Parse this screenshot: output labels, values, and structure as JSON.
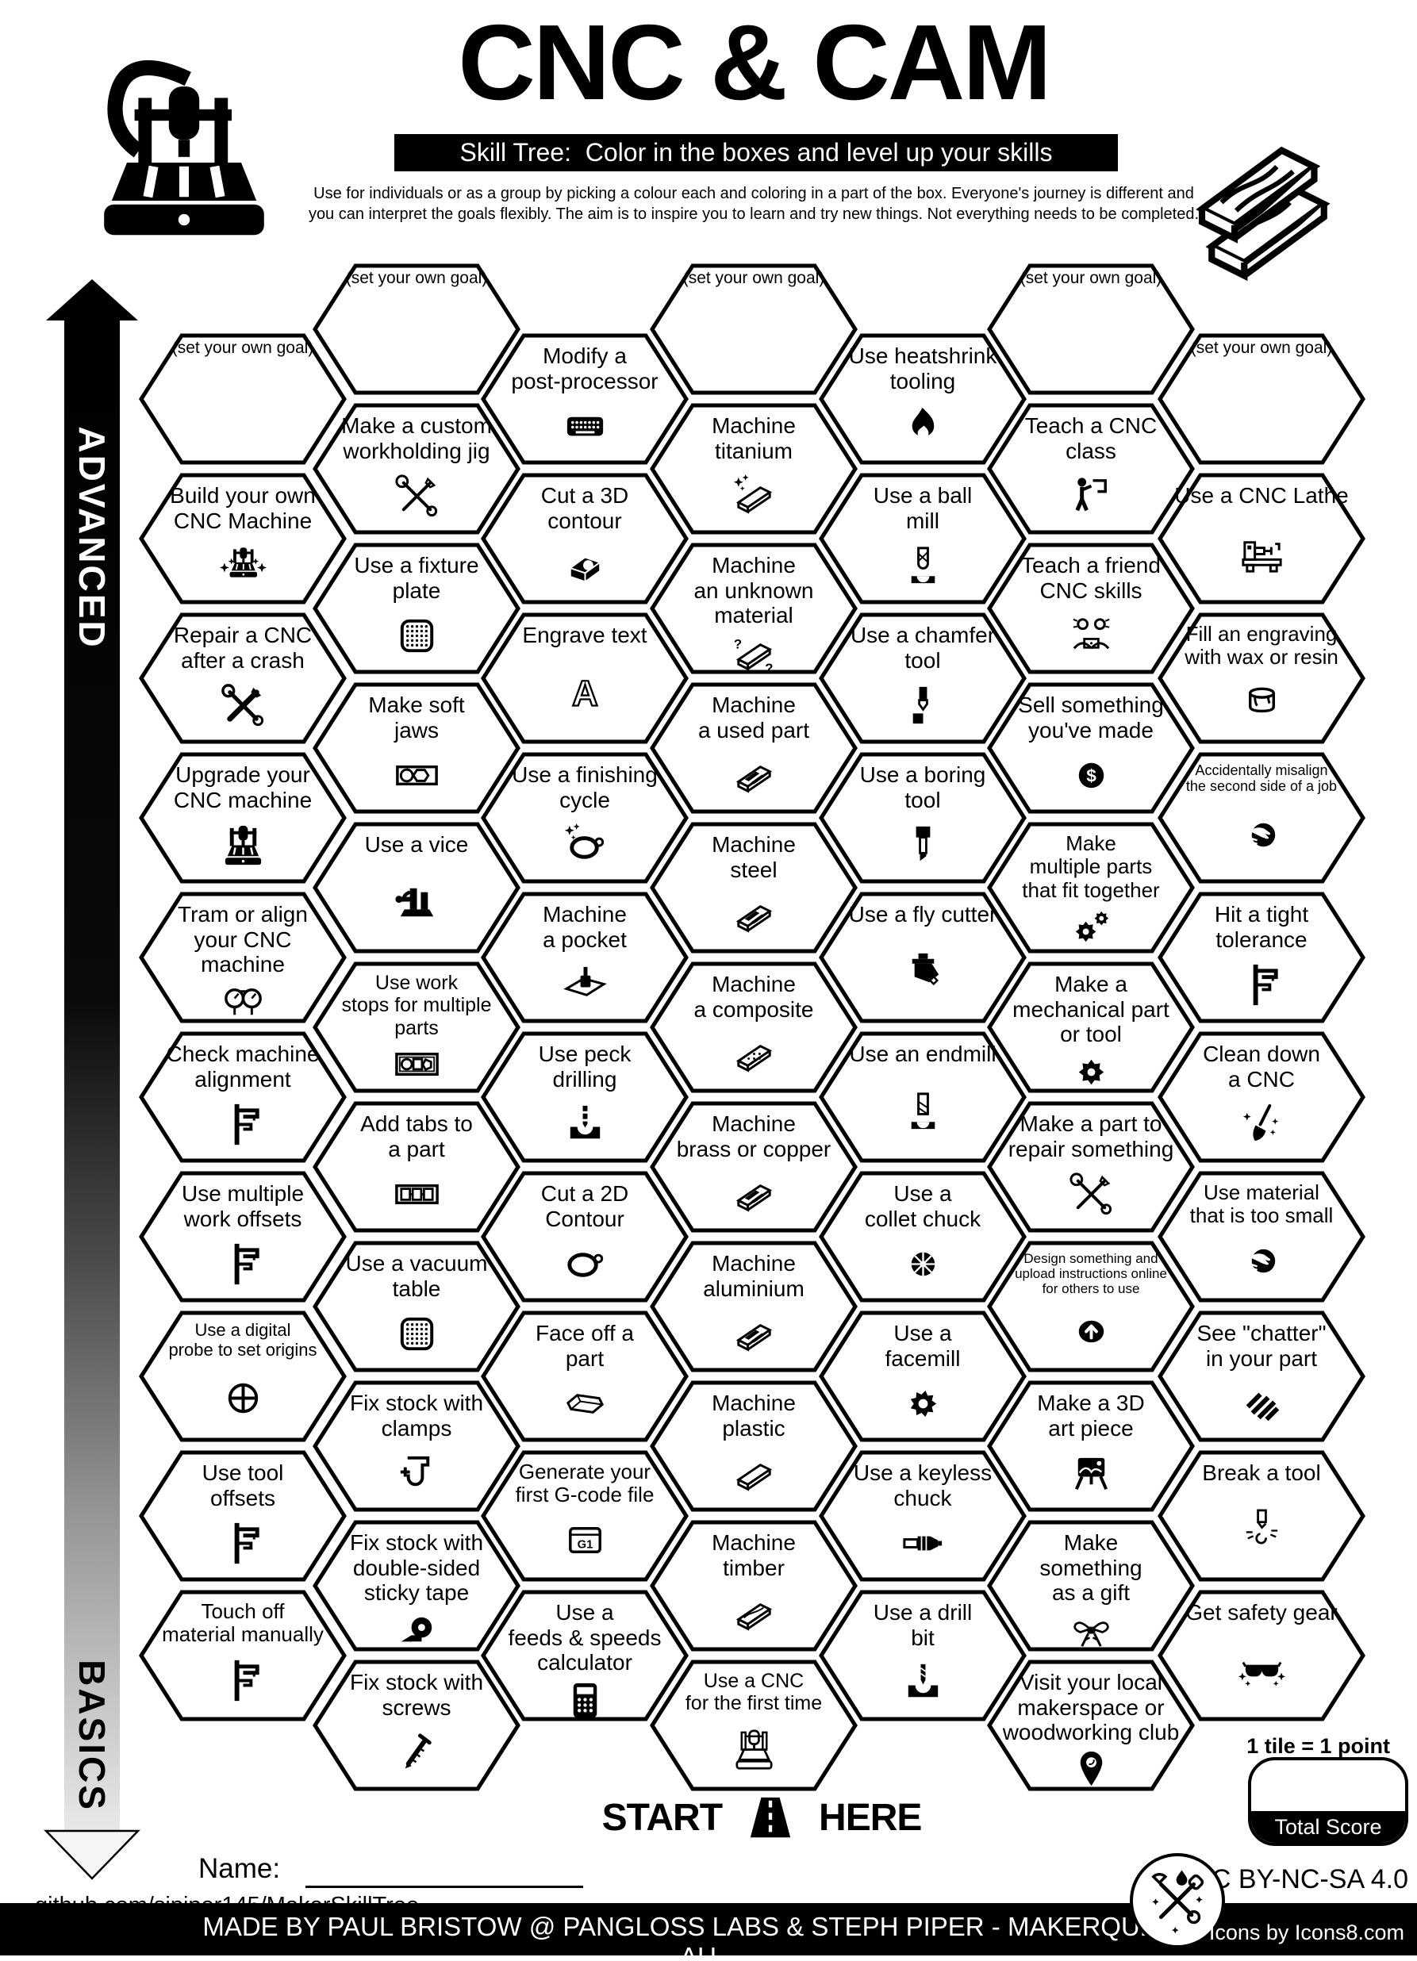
{
  "colors": {
    "ink": "#000000",
    "paper": "#ffffff"
  },
  "header": {
    "title": "CNC & CAM",
    "subtitle": "Skill Tree:  Color in the boxes and level up your skills",
    "description": "Use for individuals or as a group by picking a colour each and coloring in a part of the box.  Everyone's journey is different and you can interpret the goals flexibly.  The aim is to inspire you to learn and try new things. Not everything needs to be completed.",
    "logo_icon": "cnc-router-icon",
    "corner_icon": "timber-planks-icon"
  },
  "axis": {
    "top_label": "ADVANCED",
    "bottom_label": "BASICS"
  },
  "legend": {
    "tile_point": "1 tile = 1 point",
    "total_score_label": "Total Score"
  },
  "footer": {
    "start": "START",
    "here": "HERE",
    "name_label": "Name:",
    "repo": "github.com/sjpiper145/MakerSkillTree",
    "credit": "MADE BY PAUL BRISTOW @ PANGLOSS LABS & STEPH PIPER  -  MAKERQUEEN AU",
    "license": "CC BY-NC-SA 4.0",
    "icons_credit": "Icons by Icons8.com"
  },
  "columns": [
    {
      "tiles": [
        {
          "label": "(set your own goal)",
          "goal": true,
          "icon": null
        },
        {
          "label": "Build your own\nCNC Machine",
          "icon": "cnc-sparkles"
        },
        {
          "label": "Repair a CNC\nafter a crash",
          "icon": "crossed-tools"
        },
        {
          "label": "Upgrade your\nCNC machine",
          "icon": "cnc-machine"
        },
        {
          "label": "Tram or align\nyour CNC machine",
          "icon": "gauges"
        },
        {
          "label": "Check machine\nalignment",
          "icon": "caliper"
        },
        {
          "label": "Use multiple\nwork offsets",
          "icon": "caliper"
        },
        {
          "label": "Use a digital\nprobe to set origins",
          "icon": "crosshair"
        },
        {
          "label": "Use tool\noffsets",
          "icon": "caliper"
        },
        {
          "label": "Touch off\nmaterial manually",
          "icon": "caliper"
        }
      ]
    },
    {
      "tiles": [
        {
          "label": "(set your own goal)",
          "goal": true,
          "icon": null
        },
        {
          "label": "Make a custom\nworkholding jig",
          "icon": "crossed-tools-outline"
        },
        {
          "label": "Use a fixture\nplate",
          "icon": "dotted-plate"
        },
        {
          "label": "Make soft\njaws",
          "icon": "soft-jaws"
        },
        {
          "label": "Use a vice",
          "icon": "vice"
        },
        {
          "label": "Use work\nstops for multiple\nparts",
          "icon": "work-stops"
        },
        {
          "label": "Add tabs to\na part",
          "icon": "tabs"
        },
        {
          "label": "Use a vacuum\ntable",
          "icon": "dotted-plate"
        },
        {
          "label": "Fix stock with\nclamps",
          "icon": "clamp"
        },
        {
          "label": "Fix stock with\ndouble-sided\nsticky tape",
          "icon": "tape"
        },
        {
          "label": "Fix stock with\nscrews",
          "icon": "screw"
        }
      ]
    },
    {
      "tiles": [
        {
          "label": "Modify a\npost-processor",
          "icon": "keyboard"
        },
        {
          "label": "Cut a 3D\ncontour",
          "icon": "block-3d"
        },
        {
          "label": "Engrave text",
          "icon": "letter-a"
        },
        {
          "label": "Use a finishing\ncycle",
          "icon": "gasket-sparkle"
        },
        {
          "label": "Machine\na pocket",
          "icon": "pocket"
        },
        {
          "label": "Use peck\ndrilling",
          "icon": "peck-drill"
        },
        {
          "label": "Cut a 2D\nContour",
          "icon": "gasket"
        },
        {
          "label": "Face off a\npart",
          "icon": "hex-bar"
        },
        {
          "label": "Generate your\nfirst G-code file",
          "icon": "g1-file"
        },
        {
          "label": "Use a\nfeeds & speeds\ncalculator",
          "icon": "calculator"
        }
      ]
    },
    {
      "tiles": [
        {
          "label": "(set your own goal)",
          "goal": true,
          "icon": null
        },
        {
          "label": "Machine\ntitanium",
          "icon": "bar-sparkle"
        },
        {
          "label": "Machine\nan unknown\nmaterial",
          "icon": "bar-question"
        },
        {
          "label": "Machine\na used part",
          "icon": "bar-stripes"
        },
        {
          "label": "Machine\nsteel",
          "icon": "bar-stripes"
        },
        {
          "label": "Machine\na composite",
          "icon": "bar-dots"
        },
        {
          "label": "Machine\nbrass or copper",
          "icon": "bar-stripes"
        },
        {
          "label": "Machine\naluminium",
          "icon": "bar-stripes"
        },
        {
          "label": "Machine\nplastic",
          "icon": "bar-plain"
        },
        {
          "label": "Machine\ntimber",
          "icon": "plank-grain"
        },
        {
          "label": "Use a CNC\nfor the first time",
          "icon": "cnc-outline"
        }
      ]
    },
    {
      "tiles": [
        {
          "label": "Use heatshrink\ntooling",
          "icon": "flame"
        },
        {
          "label": "Use a ball\nmill",
          "icon": "ball-mill"
        },
        {
          "label": "Use a chamfer\ntool",
          "icon": "chamfer-tool"
        },
        {
          "label": "Use a boring\ntool",
          "icon": "boring-tool"
        },
        {
          "label": "Use a fly cutter",
          "icon": "fly-cutter"
        },
        {
          "label": "Use an endmill",
          "icon": "endmill"
        },
        {
          "label": "Use a\ncollet chuck",
          "icon": "collet"
        },
        {
          "label": "Use a\nfacemill",
          "icon": "facemill"
        },
        {
          "label": "Use a keyless\nchuck",
          "icon": "keyless-chuck"
        },
        {
          "label": "Use a drill\nbit",
          "icon": "drill-bit"
        }
      ]
    },
    {
      "tiles": [
        {
          "label": "(set your own goal)",
          "goal": true,
          "icon": null
        },
        {
          "label": "Teach a CNC\nclass",
          "icon": "teacher"
        },
        {
          "label": "Teach a friend\nCNC skills",
          "icon": "friends-laptop"
        },
        {
          "label": "Sell something\nyou've made",
          "icon": "dollar-coin"
        },
        {
          "label": "Make\nmultiple parts\nthat fit together",
          "icon": "gears"
        },
        {
          "label": "Make a\nmechanical part\nor tool",
          "icon": "gear"
        },
        {
          "label": "Make a part to\nrepair something",
          "icon": "crossed-tools-outline"
        },
        {
          "label": "Design something and\nupload instructions online\nfor others to use",
          "icon": "upload"
        },
        {
          "label": "Make a 3D\nart piece",
          "icon": "easel"
        },
        {
          "label": "Make\nsomething\nas a gift",
          "icon": "gift-bow"
        },
        {
          "label": "Visit your local\nmakerspace or\nwoodworking club",
          "icon": "location-pin"
        }
      ]
    },
    {
      "tiles": [
        {
          "label": "(set your own goal)",
          "goal": true,
          "icon": null
        },
        {
          "label": "Use a CNC Lathe",
          "icon": "lathe"
        },
        {
          "label": "Fill an engraving\nwith wax or resin",
          "icon": "paint-can"
        },
        {
          "label": "Accidentally misalign\nthe second side of a job",
          "icon": "facepalm"
        },
        {
          "label": "Hit a tight\ntolerance",
          "icon": "caliper"
        },
        {
          "label": "Clean down\na CNC",
          "icon": "broom"
        },
        {
          "label": "Use material\nthat is too small",
          "icon": "facepalm"
        },
        {
          "label": "See \"chatter\"\nin your part",
          "icon": "chatter-stripes"
        },
        {
          "label": "Break a tool",
          "icon": "broken-tool"
        },
        {
          "label": "Get safety gear",
          "icon": "safety-glasses"
        }
      ]
    }
  ]
}
